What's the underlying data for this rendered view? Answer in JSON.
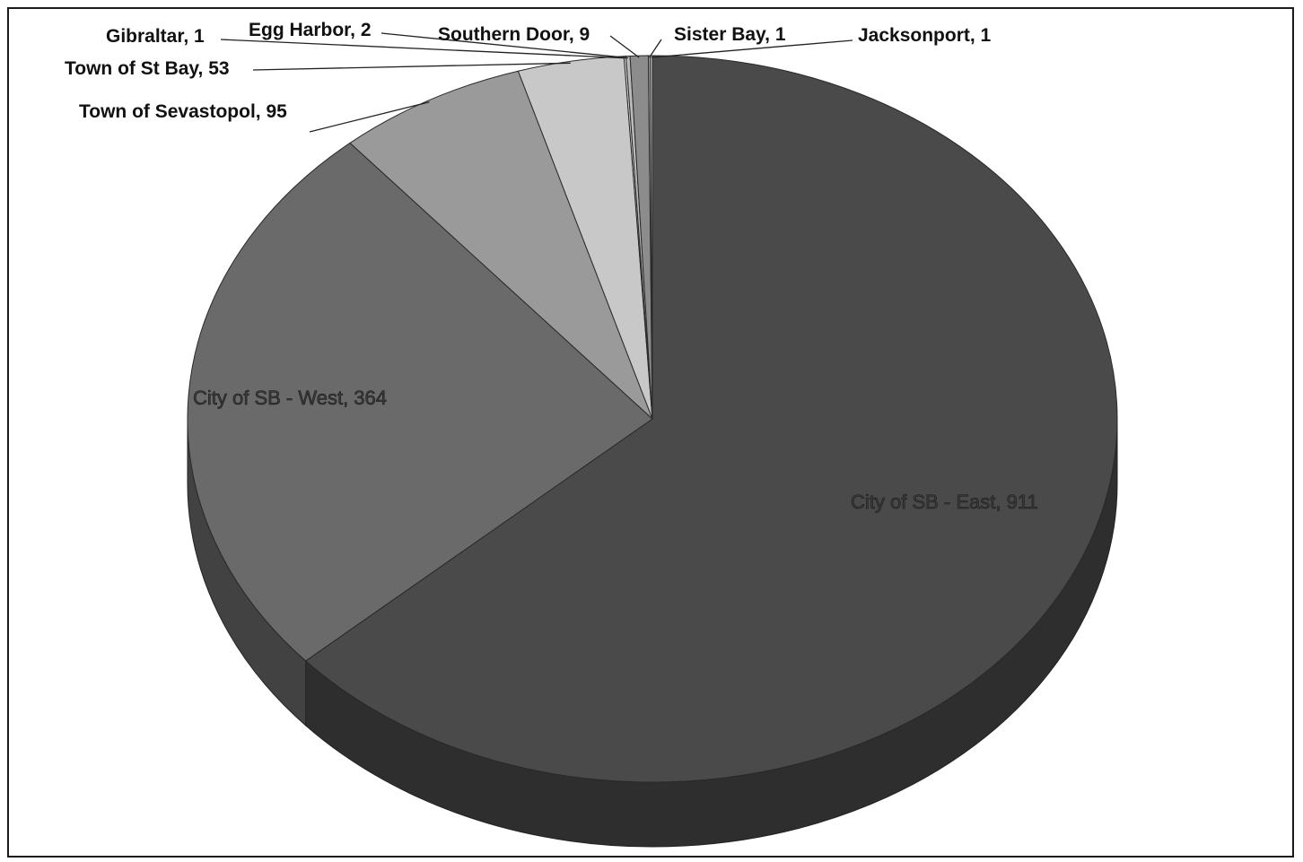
{
  "chart_data": {
    "type": "pie",
    "title": "",
    "series": [
      {
        "values": [
          911,
          364,
          95,
          53,
          1,
          2,
          9,
          1,
          1
        ],
        "labels": [
          "City of SB - East, 911",
          "City of SB - West, 364",
          "Town of Sevastopol, 95",
          "Town of St Bay, 53",
          "Gibraltar, 1",
          "Egg Harbor, 2",
          "Southern Door, 9",
          "Sister Bay, 1",
          "Jacksonport, 1"
        ],
        "categories": [
          "City of SB - East",
          "City of SB - West",
          "Town of Sevastopol",
          "Town of St Bay",
          "Gibraltar",
          "Egg Harbor",
          "Southern Door",
          "Sister Bay",
          "Jacksonport"
        ]
      }
    ],
    "colors": {
      "City of SB - East": "#4a4a4a",
      "City of SB - West": "#6a6a6a",
      "Town of Sevastopol": "#9a9a9a",
      "Town of St Bay": "#c8c8c8",
      "Gibraltar": "#dddddd",
      "Egg Harbor": "#bbbbbb",
      "Southern Door": "#8c8c8c",
      "Sister Bay": "#aaaaaa",
      "Jacksonport": "#d0d0d0"
    },
    "style": "3d-pie",
    "legend": "none",
    "data_labels": "category-and-value"
  }
}
